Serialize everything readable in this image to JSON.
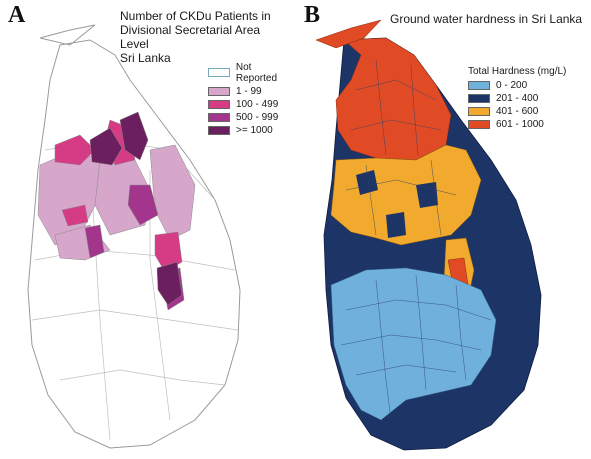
{
  "panel_a": {
    "letter": "A",
    "title": "Number of CKDu Patients in\nDivisional Secretarial Area Level\nSri Lanka",
    "legend": [
      {
        "label": "Not Reported",
        "color": "#ffffff"
      },
      {
        "label": "1 - 99",
        "color": "#d7a7cb"
      },
      {
        "label": "100 - 499",
        "color": "#d63b86"
      },
      {
        "label": "500 - 999",
        "color": "#a3368c"
      },
      {
        "label": ">= 1000",
        "color": "#6b1f5e"
      }
    ]
  },
  "panel_b": {
    "letter": "B",
    "title": "Ground water hardness in Sri Lanka",
    "legend_title": "Total Hardness (mg/L)",
    "legend": [
      {
        "label": "0 - 200",
        "color": "#6fb0dc"
      },
      {
        "label": "201 - 400",
        "color": "#1d3467"
      },
      {
        "label": "401 - 600",
        "color": "#f1a92e"
      },
      {
        "label": "601 - 1000",
        "color": "#e04a24"
      }
    ]
  }
}
